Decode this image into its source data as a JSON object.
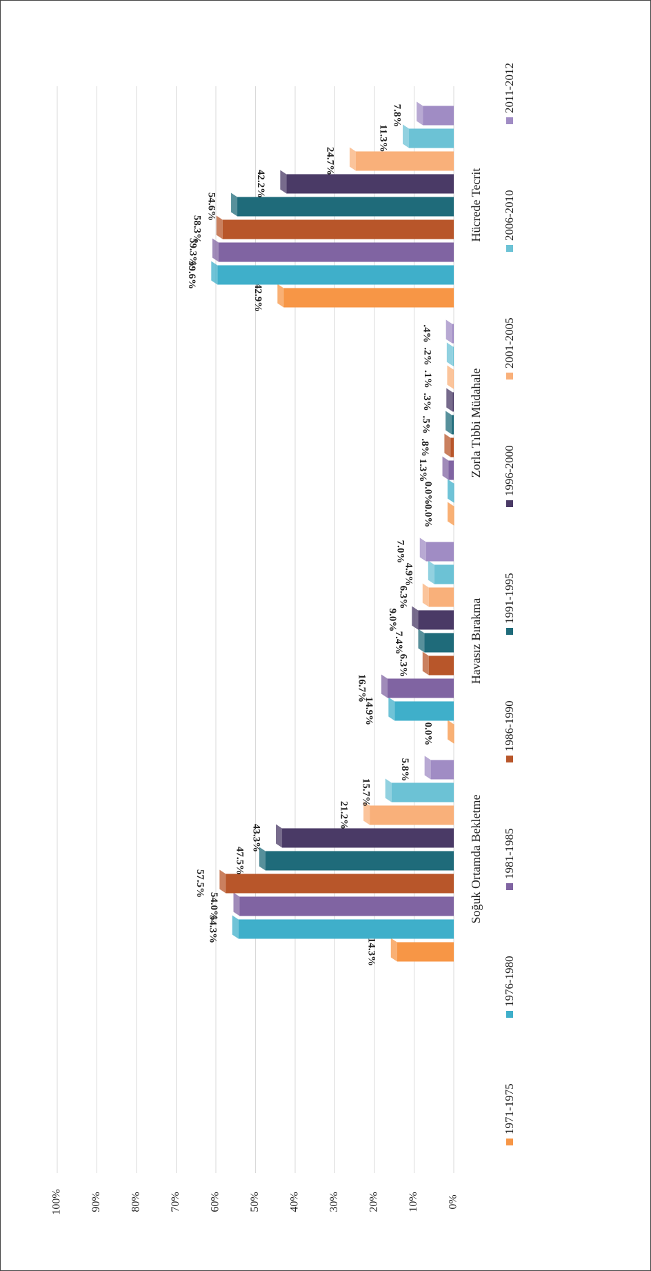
{
  "chart_data": {
    "type": "bar",
    "categories": [
      "Soğuk Ortamda Bekletme",
      "Havasız Bırakma",
      "Zorla Tıbbi Müdahale",
      "Hücrede Tecrit"
    ],
    "series": [
      {
        "name": "1971-1975",
        "color": "#f79646",
        "values": [
          14.3,
          0.0,
          0.0,
          42.9
        ],
        "value_labels": [
          "14.3%",
          "0.0%",
          "0.0%",
          "42.9%"
        ]
      },
      {
        "name": "1976-1980",
        "color": "#3fafca",
        "values": [
          54.3,
          14.9,
          0.0,
          59.6
        ],
        "value_labels": [
          "54.3%",
          "14.9%",
          "0.0%",
          "59.6%"
        ]
      },
      {
        "name": "1981-1985",
        "color": "#8064a2",
        "values": [
          54.0,
          16.7,
          1.3,
          59.3
        ],
        "value_labels": [
          "54.0%",
          "16.7%",
          "1.3%",
          "59.3%"
        ]
      },
      {
        "name": "1986-1990",
        "color": "#b8562a",
        "values": [
          57.5,
          6.3,
          0.8,
          58.3
        ],
        "value_labels": [
          "57.5%",
          "6.3%",
          ".8%",
          "58.3%"
        ]
      },
      {
        "name": "1991-1995",
        "color": "#1f6b7a",
        "values": [
          47.5,
          7.4,
          0.5,
          54.6
        ],
        "value_labels": [
          "47.5%",
          "7.4%",
          ".5%",
          "54.6%"
        ]
      },
      {
        "name": "1996-2000",
        "color": "#4a3a66",
        "values": [
          43.3,
          9.0,
          0.3,
          42.2
        ],
        "value_labels": [
          "43.3%",
          "9.0%",
          ".3%",
          "42.2%"
        ]
      },
      {
        "name": "2001-2005",
        "color": "#f9b07a",
        "values": [
          21.2,
          6.3,
          0.1,
          24.7
        ],
        "value_labels": [
          "21.2%",
          "6.3%",
          ".1%",
          "24.7%"
        ]
      },
      {
        "name": "2006-2010",
        "color": "#6cc2d5",
        "values": [
          15.7,
          4.9,
          0.2,
          11.3
        ],
        "value_labels": [
          "15.7%",
          "4.9%",
          ".2%",
          "11.3%"
        ]
      },
      {
        "name": "2011-2012",
        "color": "#a08cc4",
        "values": [
          5.8,
          7.0,
          0.4,
          7.8
        ],
        "value_labels": [
          "5.8%",
          "7.0%",
          ".4%",
          "7.8%"
        ]
      }
    ],
    "ylim": [
      0,
      100
    ],
    "yticks": [
      {
        "value": 0,
        "label": "0%"
      },
      {
        "value": 10,
        "label": "10%"
      },
      {
        "value": 20,
        "label": "20%"
      },
      {
        "value": 30,
        "label": "30%"
      },
      {
        "value": 40,
        "label": "40%"
      },
      {
        "value": 50,
        "label": "50%"
      },
      {
        "value": 60,
        "label": "60%"
      },
      {
        "value": 70,
        "label": "70%"
      },
      {
        "value": 80,
        "label": "80%"
      },
      {
        "value": 90,
        "label": "90%"
      },
      {
        "value": 100,
        "label": "100%"
      }
    ],
    "grid": true,
    "legend": "bottom"
  }
}
